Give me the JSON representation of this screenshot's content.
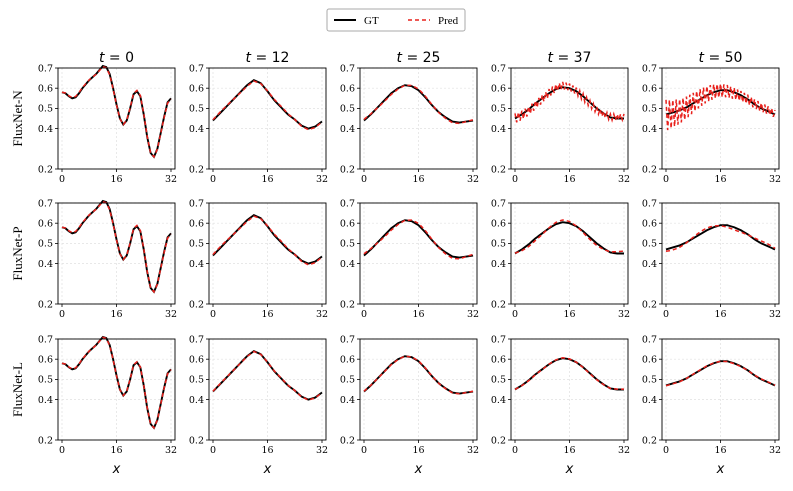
{
  "chart_data": {
    "type": "line",
    "legend": {
      "placement": "top-center",
      "entries": [
        {
          "name": "GT",
          "color": "#000000",
          "style": "solid"
        },
        {
          "name": "Pred",
          "color": "#e8211c",
          "style": "dashed"
        }
      ]
    },
    "columns": [
      {
        "title": "t = 0",
        "t_var": "t",
        "t_val": "0"
      },
      {
        "title": "t = 12",
        "t_var": "t",
        "t_val": "12"
      },
      {
        "title": "t = 25",
        "t_var": "t",
        "t_val": "25"
      },
      {
        "title": "t = 37",
        "t_var": "t",
        "t_val": "37"
      },
      {
        "title": "t = 50",
        "t_var": "t",
        "t_val": "50"
      }
    ],
    "rows": [
      {
        "label": "FluxNet-N"
      },
      {
        "label": "FluxNet-P"
      },
      {
        "label": "FluxNet-L"
      }
    ],
    "xlabel": "x",
    "xlim": [
      0,
      32
    ],
    "ylim": [
      0.2,
      0.7
    ],
    "xticks": [
      "0",
      "16",
      "32"
    ],
    "yticks": [
      "0.2",
      "0.4",
      "0.5",
      "0.6",
      "0.7"
    ],
    "grid": true,
    "gt_profiles": [
      {
        "time": "0",
        "x": [
          0,
          1,
          2,
          3,
          4,
          5,
          6,
          7,
          8,
          9,
          10,
          11,
          12,
          13,
          14,
          15,
          16,
          17,
          18,
          19,
          20,
          21,
          22,
          23,
          24,
          25,
          26,
          27,
          28,
          29,
          30,
          31,
          32
        ],
        "y": [
          0.58,
          0.575,
          0.56,
          0.55,
          0.555,
          0.575,
          0.6,
          0.62,
          0.64,
          0.655,
          0.67,
          0.69,
          0.71,
          0.705,
          0.67,
          0.6,
          0.52,
          0.45,
          0.42,
          0.44,
          0.5,
          0.57,
          0.585,
          0.56,
          0.47,
          0.36,
          0.28,
          0.26,
          0.3,
          0.38,
          0.46,
          0.53,
          0.55
        ]
      },
      {
        "time": "12",
        "x": [
          0,
          2,
          4,
          6,
          8,
          10,
          12,
          14,
          16,
          18,
          20,
          22,
          24,
          26,
          28,
          30,
          32
        ],
        "y": [
          0.44,
          0.475,
          0.51,
          0.545,
          0.58,
          0.615,
          0.64,
          0.625,
          0.585,
          0.54,
          0.505,
          0.47,
          0.445,
          0.415,
          0.4,
          0.41,
          0.435
        ]
      },
      {
        "time": "25",
        "x": [
          0,
          2,
          4,
          6,
          8,
          10,
          12,
          14,
          16,
          18,
          20,
          22,
          24,
          26,
          28,
          30,
          32
        ],
        "y": [
          0.44,
          0.47,
          0.505,
          0.54,
          0.575,
          0.6,
          0.615,
          0.61,
          0.59,
          0.555,
          0.515,
          0.48,
          0.455,
          0.435,
          0.43,
          0.435,
          0.44
        ]
      },
      {
        "time": "37",
        "x": [
          0,
          2,
          4,
          6,
          8,
          10,
          12,
          14,
          16,
          18,
          20,
          22,
          24,
          26,
          28,
          30,
          32
        ],
        "y": [
          0.45,
          0.47,
          0.495,
          0.525,
          0.55,
          0.575,
          0.595,
          0.605,
          0.6,
          0.585,
          0.56,
          0.53,
          0.5,
          0.475,
          0.455,
          0.45,
          0.45
        ]
      },
      {
        "time": "50",
        "x": [
          0,
          2,
          4,
          6,
          8,
          10,
          12,
          14,
          16,
          18,
          20,
          22,
          24,
          26,
          28,
          30,
          32
        ],
        "y": [
          0.47,
          0.48,
          0.49,
          0.505,
          0.525,
          0.545,
          0.565,
          0.58,
          0.59,
          0.59,
          0.58,
          0.565,
          0.545,
          0.52,
          0.5,
          0.485,
          0.47
        ]
      }
    ],
    "pred_offsets": [
      [
        {
          "amp": 0.004,
          "osc": 0.0,
          "osc_decay": 0
        },
        {
          "amp": 0.005,
          "osc": 0.0,
          "osc_decay": 0
        },
        {
          "amp": 0.006,
          "osc": 0.0,
          "osc_decay": 0
        },
        {
          "amp": 0.008,
          "osc": 0.012,
          "osc_decay": 0.05
        },
        {
          "amp": 0.006,
          "osc": 0.065,
          "osc_decay": 0.07
        }
      ],
      [
        {
          "amp": 0.004,
          "osc": 0.0,
          "osc_decay": 0
        },
        {
          "amp": 0.006,
          "osc": 0.0,
          "osc_decay": 0
        },
        {
          "amp": 0.009,
          "osc": 0.0,
          "osc_decay": 0
        },
        {
          "amp": 0.011,
          "osc": 0.0,
          "osc_decay": 0
        },
        {
          "amp": 0.012,
          "osc": 0.0,
          "osc_decay": 0
        }
      ],
      [
        {
          "amp": 0.002,
          "osc": 0.0,
          "osc_decay": 0
        },
        {
          "amp": 0.002,
          "osc": 0.0,
          "osc_decay": 0
        },
        {
          "amp": 0.002,
          "osc": 0.0,
          "osc_decay": 0
        },
        {
          "amp": 0.002,
          "osc": 0.0,
          "osc_decay": 0
        },
        {
          "amp": 0.002,
          "osc": 0.0,
          "osc_decay": 0
        }
      ]
    ]
  }
}
